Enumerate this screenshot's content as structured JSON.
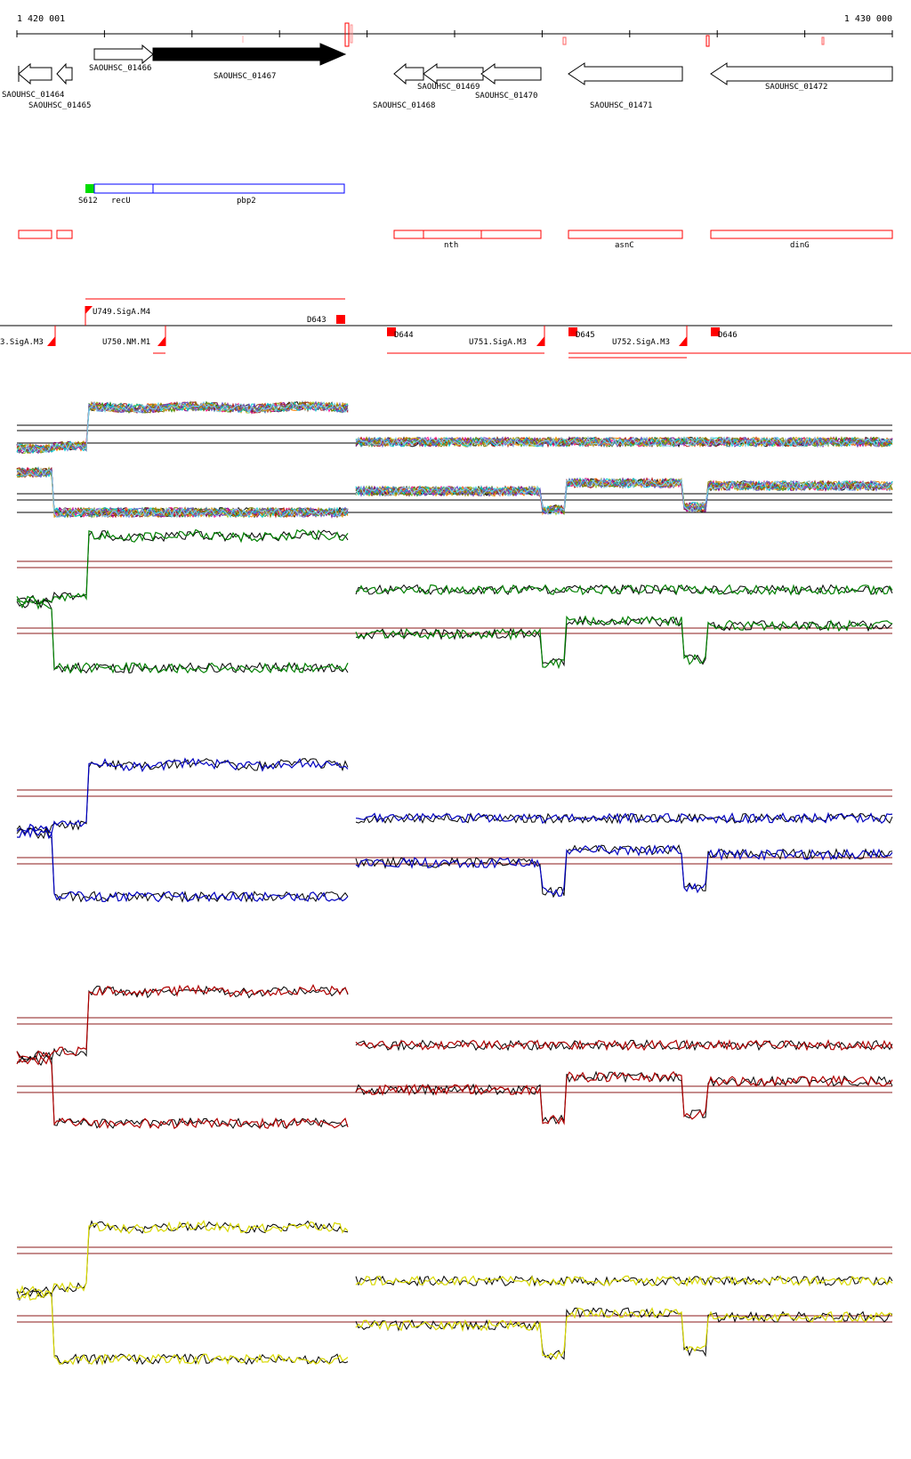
{
  "coordinates": {
    "start_label": "1 420 001",
    "end_label": "1 430 000",
    "start": 1420001,
    "end": 1430000
  },
  "genes": [
    {
      "label": "SAOUHSC_01464",
      "strand": "-"
    },
    {
      "label": "SAOUHSC_01465",
      "strand": "-"
    },
    {
      "label": "SAOUHSC_01466",
      "strand": "+"
    },
    {
      "label": "SAOUHSC_01467",
      "strand": "+",
      "highlighted": true
    },
    {
      "label": "SAOUHSC_01468",
      "strand": "-"
    },
    {
      "label": "SAOUHSC_01469",
      "strand": "-"
    },
    {
      "label": "SAOUHSC_01470",
      "strand": "-"
    },
    {
      "label": "SAOUHSC_01471",
      "strand": "-"
    },
    {
      "label": "SAOUHSC_01472",
      "strand": "-"
    }
  ],
  "blue_features": [
    {
      "label": "S612",
      "color": "#00dd00"
    },
    {
      "label": "recU",
      "color": "#0000ff"
    },
    {
      "label": "pbp2",
      "color": "#0000ff"
    }
  ],
  "red_features": [
    {
      "label": "",
      "color": "#ff0000"
    },
    {
      "label": "",
      "color": "#ff0000"
    },
    {
      "label": "nth",
      "color": "#ff0000"
    },
    {
      "label": "asnC",
      "color": "#ff0000"
    },
    {
      "label": "dinG",
      "color": "#ff0000"
    }
  ],
  "transcripts": {
    "upper": [
      {
        "label": "U749.SigA.M4"
      },
      {
        "label": "D643"
      }
    ],
    "lower": [
      {
        "label": "3.SigA.M3"
      },
      {
        "label": "U750.NM.M1"
      },
      {
        "label": "D644"
      },
      {
        "label": "U751.SigA.M3"
      },
      {
        "label": "D645"
      },
      {
        "label": "U752.SigA.M3"
      },
      {
        "label": "D646"
      }
    ]
  },
  "expression_panels": [
    {
      "name": "all-conditions",
      "color": "multi"
    },
    {
      "name": "green-condition",
      "color": "#008000"
    },
    {
      "name": "blue-condition",
      "color": "#0000c0"
    },
    {
      "name": "red-condition",
      "color": "#b00000"
    },
    {
      "name": "yellow-condition",
      "color": "#d8d800"
    }
  ],
  "colors": {
    "gene_fill_highlight": "#000000",
    "feature_red": "#ff0000",
    "threshold_line": "#8b1a1a",
    "axis": "#000000"
  }
}
